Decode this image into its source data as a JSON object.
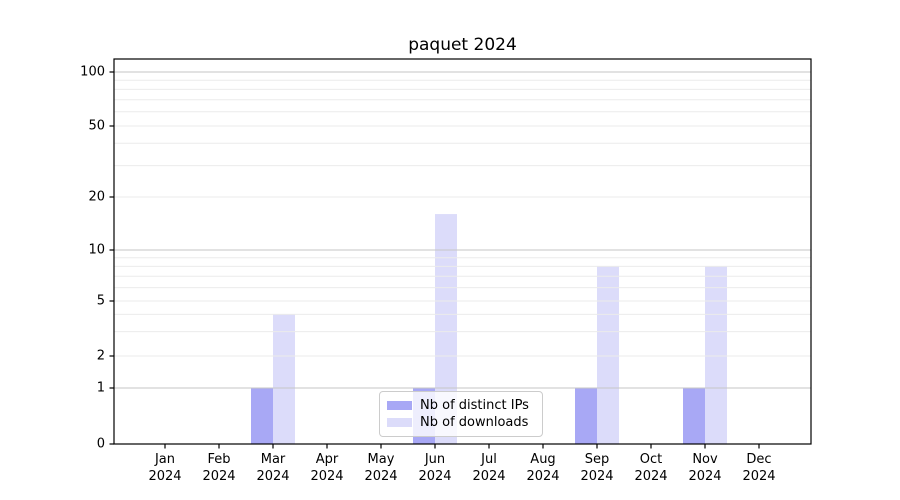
{
  "chart_data": {
    "type": "bar",
    "title": "paquet 2024",
    "categories": [
      "Jan",
      "Feb",
      "Mar",
      "Apr",
      "May",
      "Jun",
      "Jul",
      "Aug",
      "Sep",
      "Oct",
      "Nov",
      "Dec"
    ],
    "category_year": "2024",
    "series": [
      {
        "name": "Nb of distinct IPs",
        "color": "#a8a8f5",
        "values": [
          0,
          0,
          1,
          0,
          0,
          1,
          0,
          0,
          1,
          0,
          1,
          0
        ]
      },
      {
        "name": "Nb of downloads",
        "color": "#dcdcfa",
        "values": [
          0,
          0,
          4,
          0,
          0,
          16,
          0,
          0,
          8,
          0,
          8,
          0
        ]
      }
    ],
    "y_axis": {
      "labeled_ticks": [
        0,
        1,
        2,
        5,
        10,
        20,
        50,
        100
      ],
      "major_gridlines": [
        1,
        10,
        100
      ],
      "minor_gridlines": [
        2,
        3,
        4,
        5,
        6,
        7,
        8,
        9,
        20,
        30,
        40,
        50,
        60,
        70,
        80,
        90
      ],
      "scale": "symlog",
      "range": [
        0,
        100
      ]
    },
    "x_axis": {
      "label_line2": "2024"
    },
    "legend": {
      "position": "lower center"
    },
    "colors": {
      "major_gridline": "#c6c6c6",
      "minor_gridline": "#ebebeb",
      "spine": "#000000"
    }
  }
}
